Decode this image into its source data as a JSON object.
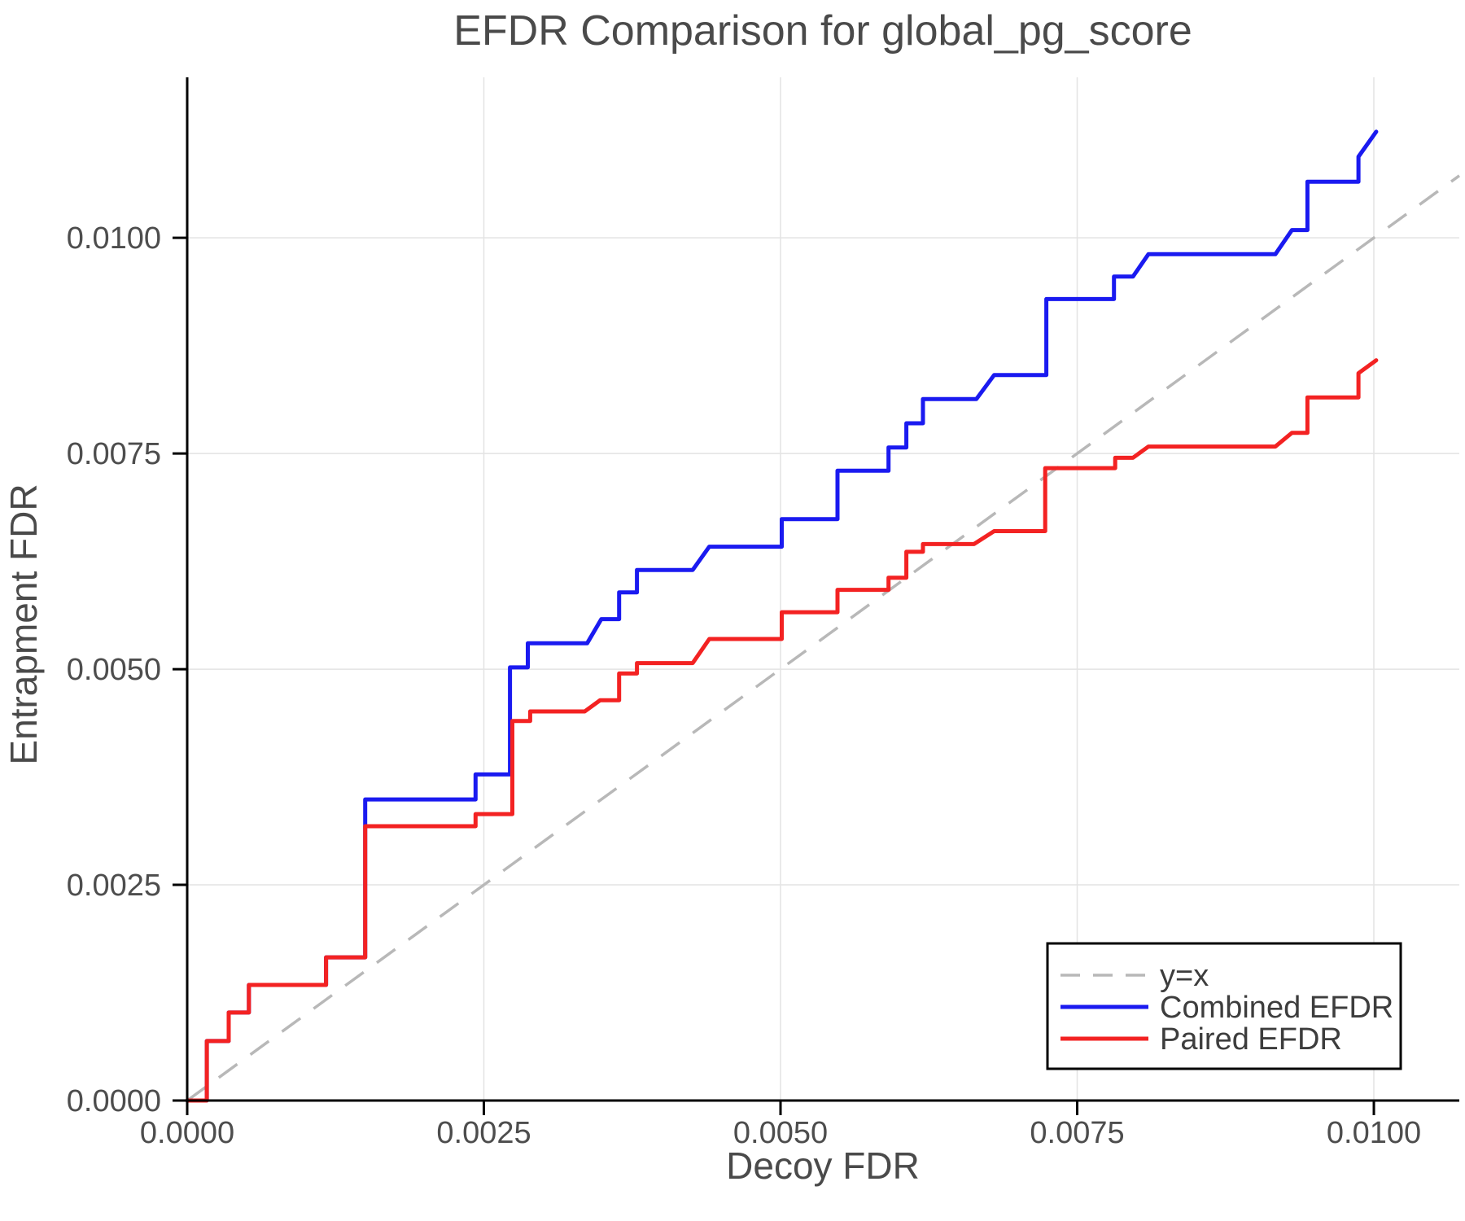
{
  "title": "EFDR Comparison for global_pg_score",
  "chart_data": {
    "type": "line",
    "subtype": "step-efdr-comparison",
    "title": "EFDR Comparison for global_pg_score",
    "xlabel": "Decoy FDR",
    "ylabel": "Entrapment FDR",
    "xlim": [
      0,
      0.01072
    ],
    "ylim": [
      0,
      0.01186
    ],
    "grid": true,
    "grid_color": "#e3e3e3",
    "axis_color": "#000000",
    "x_ticks": {
      "values": [
        0,
        0.0025,
        0.005,
        0.0075,
        0.01
      ],
      "labels": [
        "0.0000",
        "0.0025",
        "0.0050",
        "0.0075",
        "0.0100"
      ]
    },
    "y_ticks": {
      "values": [
        0,
        0.0025,
        0.005,
        0.0075,
        0.01
      ],
      "labels": [
        "0.0000",
        "0.0025",
        "0.0050",
        "0.0075",
        "0.0100"
      ]
    },
    "reference_line": {
      "label": "y=x",
      "from": [
        0,
        0
      ],
      "to": [
        0.01072,
        0.01072
      ],
      "color": "#b8b8b8",
      "dashed": true
    },
    "legend": {
      "position": "lower right",
      "entries": [
        {
          "label": "y=x",
          "color": "#b8b8b8",
          "dashed": true
        },
        {
          "label": "Combined EFDR",
          "color": "#1a1af0",
          "dashed": false
        },
        {
          "label": "Paired EFDR",
          "color": "#f32222",
          "dashed": false
        }
      ]
    },
    "series": [
      {
        "name": "Combined EFDR",
        "color": "#1a1af0",
        "points": [
          [
            0.0,
            0.0
          ],
          [
            0.000165,
            0.0
          ],
          [
            0.000165,
            0.00069
          ],
          [
            0.00035,
            0.00069
          ],
          [
            0.00035,
            0.00102
          ],
          [
            0.00052,
            0.00102
          ],
          [
            0.00052,
            0.00134
          ],
          [
            0.00117,
            0.00134
          ],
          [
            0.00117,
            0.00166
          ],
          [
            0.0015,
            0.00166
          ],
          [
            0.0015,
            0.00349
          ],
          [
            0.00243,
            0.00349
          ],
          [
            0.00243,
            0.00378
          ],
          [
            0.00272,
            0.00378
          ],
          [
            0.00272,
            0.00502
          ],
          [
            0.00287,
            0.00502
          ],
          [
            0.00287,
            0.0053
          ],
          [
            0.00337,
            0.0053
          ],
          [
            0.00349,
            0.00558
          ],
          [
            0.00364,
            0.00558
          ],
          [
            0.00364,
            0.00589
          ],
          [
            0.00379,
            0.00589
          ],
          [
            0.00379,
            0.00615
          ],
          [
            0.00426,
            0.00615
          ],
          [
            0.0044,
            0.00642
          ],
          [
            0.00501,
            0.00642
          ],
          [
            0.00501,
            0.00674
          ],
          [
            0.00548,
            0.00674
          ],
          [
            0.00548,
            0.0073
          ],
          [
            0.00591,
            0.0073
          ],
          [
            0.00591,
            0.00757
          ],
          [
            0.00606,
            0.00757
          ],
          [
            0.00606,
            0.00785
          ],
          [
            0.0062,
            0.00785
          ],
          [
            0.0062,
            0.00813
          ],
          [
            0.00665,
            0.00813
          ],
          [
            0.0068,
            0.00841
          ],
          [
            0.00724,
            0.00841
          ],
          [
            0.00724,
            0.00929
          ],
          [
            0.00781,
            0.00929
          ],
          [
            0.00781,
            0.00955
          ],
          [
            0.00797,
            0.00955
          ],
          [
            0.0081,
            0.00981
          ],
          [
            0.00917,
            0.00981
          ],
          [
            0.00931,
            0.01009
          ],
          [
            0.00944,
            0.01009
          ],
          [
            0.00944,
            0.01065
          ],
          [
            0.00987,
            0.01065
          ],
          [
            0.00987,
            0.01094
          ],
          [
            0.01002,
            0.01123
          ]
        ]
      },
      {
        "name": "Paired EFDR",
        "color": "#f32222",
        "points": [
          [
            0.0,
            0.0
          ],
          [
            0.000165,
            0.0
          ],
          [
            0.000165,
            0.00069
          ],
          [
            0.00035,
            0.00069
          ],
          [
            0.00035,
            0.00102
          ],
          [
            0.00052,
            0.00102
          ],
          [
            0.00052,
            0.00134
          ],
          [
            0.00117,
            0.00134
          ],
          [
            0.00117,
            0.00166
          ],
          [
            0.0015,
            0.00166
          ],
          [
            0.0015,
            0.00318
          ],
          [
            0.00243,
            0.00318
          ],
          [
            0.00243,
            0.00332
          ],
          [
            0.00274,
            0.00332
          ],
          [
            0.00274,
            0.0044
          ],
          [
            0.00289,
            0.0044
          ],
          [
            0.00289,
            0.00451
          ],
          [
            0.00335,
            0.00451
          ],
          [
            0.00348,
            0.00464
          ],
          [
            0.00364,
            0.00464
          ],
          [
            0.00364,
            0.00495
          ],
          [
            0.00379,
            0.00495
          ],
          [
            0.00379,
            0.00507
          ],
          [
            0.00426,
            0.00507
          ],
          [
            0.0044,
            0.00535
          ],
          [
            0.00501,
            0.00535
          ],
          [
            0.00501,
            0.00566
          ],
          [
            0.00548,
            0.00566
          ],
          [
            0.00548,
            0.00592
          ],
          [
            0.00591,
            0.00592
          ],
          [
            0.00591,
            0.00606
          ],
          [
            0.00606,
            0.00606
          ],
          [
            0.00606,
            0.00636
          ],
          [
            0.0062,
            0.00636
          ],
          [
            0.0062,
            0.00645
          ],
          [
            0.00663,
            0.00645
          ],
          [
            0.0068,
            0.0066
          ],
          [
            0.00723,
            0.0066
          ],
          [
            0.00723,
            0.00733
          ],
          [
            0.00782,
            0.00733
          ],
          [
            0.00782,
            0.00745
          ],
          [
            0.00797,
            0.00745
          ],
          [
            0.0081,
            0.00758
          ],
          [
            0.00917,
            0.00758
          ],
          [
            0.00931,
            0.00774
          ],
          [
            0.00944,
            0.00774
          ],
          [
            0.00944,
            0.00815
          ],
          [
            0.00987,
            0.00815
          ],
          [
            0.00987,
            0.00843
          ],
          [
            0.01002,
            0.00858
          ]
        ]
      }
    ]
  }
}
